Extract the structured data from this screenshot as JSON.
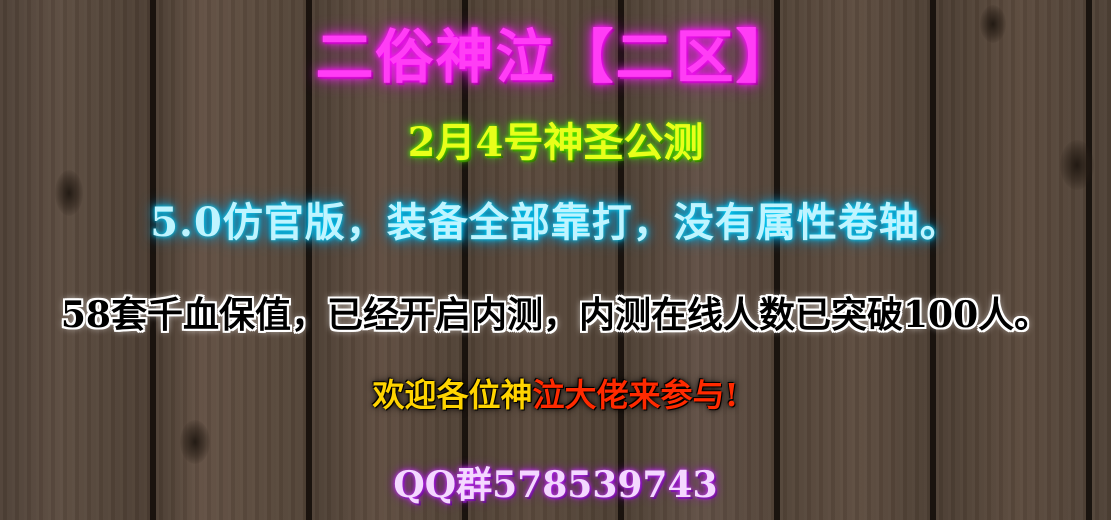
{
  "banner": {
    "title": "二俗神泣【二区】",
    "launch_date": "2月4号神圣公测",
    "version_text": "5.0仿官版，装备全部靠打，没有属性卷轴。",
    "info_text": "58套千血保值，已经开启内测，内测在线人数已突破100人。",
    "welcome_part1": "欢迎各位神",
    "welcome_part2": "泣大佬来参与!",
    "qq_group": "QQ群578539743"
  },
  "colors": {
    "title": "#ff3df5",
    "launch_date": "#e8ff1a",
    "version_text": "#bff4ff",
    "info_text": "#000000",
    "welcome_yellow": "#ffd400",
    "welcome_red": "#ff2a00",
    "qq_group": "#f4d8ff"
  }
}
